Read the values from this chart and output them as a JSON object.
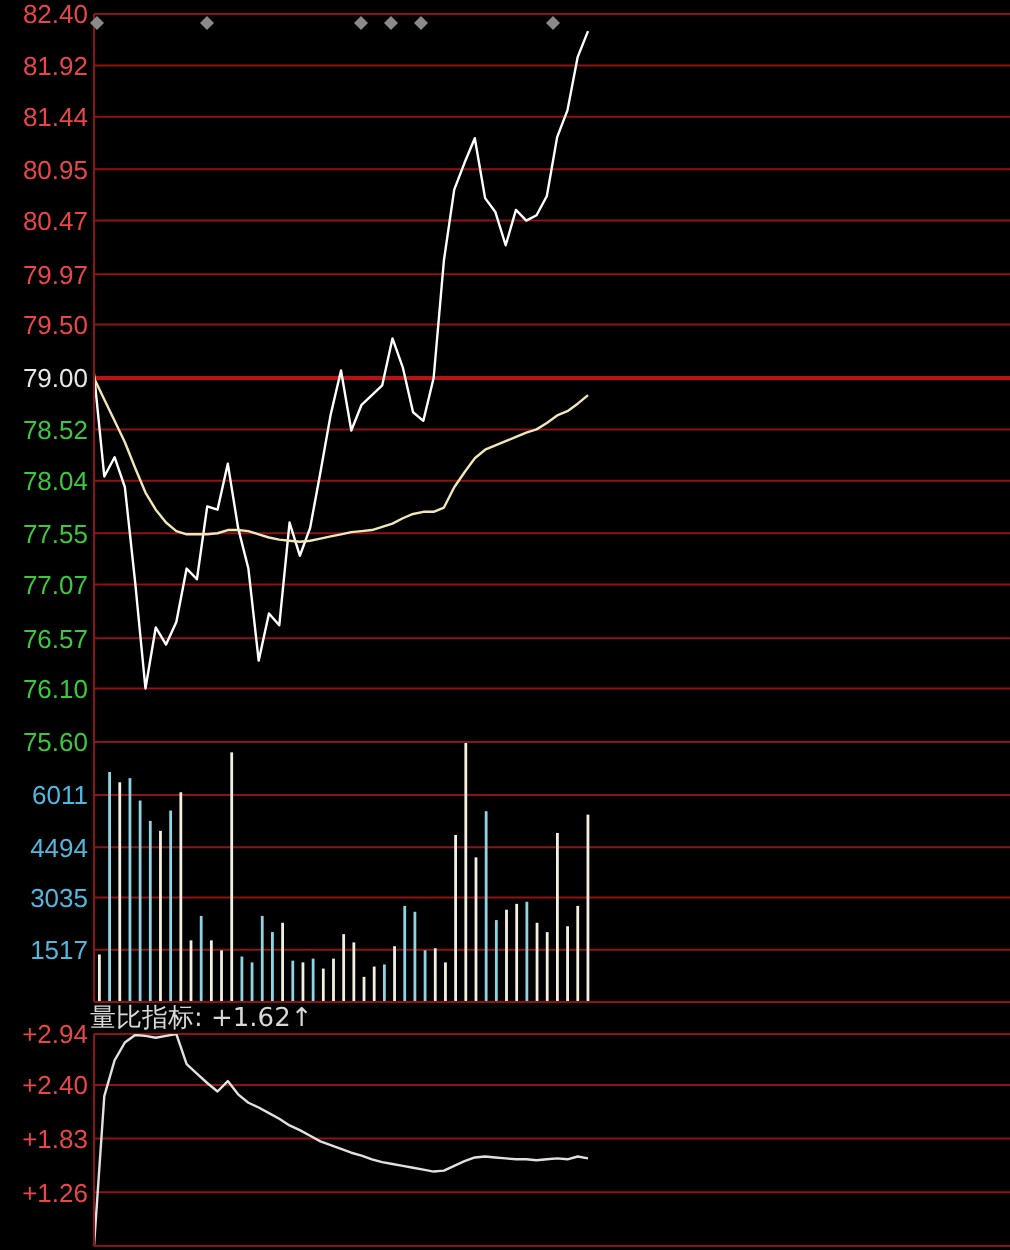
{
  "chart_data": [
    {
      "type": "line",
      "categories": [
        null,
        null,
        null,
        null,
        null,
        null,
        null,
        null,
        null,
        null,
        null,
        null,
        null,
        null,
        null,
        null,
        null,
        null,
        null,
        null,
        null,
        null,
        null,
        null,
        null,
        null,
        null,
        null,
        null,
        null,
        null,
        null,
        null,
        null,
        null,
        null,
        null,
        null,
        null,
        null,
        null,
        null,
        null,
        null,
        null,
        null,
        null,
        null,
        null,
        null,
        null,
        null,
        null,
        null,
        null,
        null,
        null,
        null,
        null,
        null,
        null,
        null,
        null,
        null,
        null,
        null,
        null,
        null,
        null,
        null,
        null,
        null,
        null,
        null,
        null,
        null,
        null,
        null,
        null,
        null,
        null,
        null,
        null,
        null,
        null,
        null,
        null,
        null,
        null,
        null
      ],
      "series": [
        {
          "color": "#ffffff",
          "values": [
            79.04,
            78.08,
            78.26,
            77.98,
            77.09,
            76.1,
            76.67,
            76.51,
            76.72,
            77.22,
            77.12,
            77.8,
            77.77,
            78.2,
            77.6,
            77.22,
            76.36,
            76.8,
            76.69,
            77.65,
            77.34,
            77.6,
            78.12,
            78.66,
            79.07,
            78.51,
            78.75,
            78.84,
            78.93,
            79.37,
            79.1,
            78.68,
            78.6,
            79.0,
            80.1,
            80.76,
            81.01,
            81.24,
            80.68,
            80.55,
            80.24,
            80.57,
            80.47,
            80.52,
            80.7,
            81.25,
            81.5,
            82.0,
            82.24,
            null,
            null,
            null,
            null,
            null,
            null,
            null,
            null,
            null,
            null,
            null,
            null,
            null,
            null,
            null,
            null,
            null,
            null,
            null,
            null,
            null,
            null,
            null,
            null,
            null,
            null,
            null,
            null,
            null,
            null,
            null,
            null,
            null,
            null,
            null,
            null,
            null,
            null,
            null,
            null,
            null
          ]
        },
        {
          "color": "#f0e6b8",
          "values": [
            79.0,
            78.8,
            78.6,
            78.4,
            78.16,
            77.93,
            77.77,
            77.65,
            77.57,
            77.54,
            77.54,
            77.54,
            77.55,
            77.58,
            77.58,
            77.57,
            77.54,
            77.51,
            77.49,
            77.48,
            77.47,
            77.48,
            77.5,
            77.52,
            77.54,
            77.56,
            77.57,
            77.58,
            77.61,
            77.64,
            77.69,
            77.73,
            77.75,
            77.75,
            77.79,
            77.98,
            78.12,
            78.25,
            78.33,
            78.37,
            78.41,
            78.45,
            78.49,
            78.52,
            78.58,
            78.65,
            78.69,
            78.76,
            78.84,
            null,
            null,
            null,
            null,
            null,
            null,
            null,
            null,
            null,
            null,
            null,
            null,
            null,
            null,
            null,
            null,
            null,
            null,
            null,
            null,
            null,
            null,
            null,
            null,
            null,
            null,
            null,
            null,
            null,
            null,
            null,
            null,
            null,
            null,
            null,
            null,
            null,
            null,
            null,
            null,
            null
          ]
        }
      ],
      "ylim": [
        75.6,
        82.4
      ],
      "yticks": [
        {
          "value": 82.4,
          "label": "82.40"
        },
        {
          "value": 81.92,
          "label": "81.92"
        },
        {
          "value": 81.44,
          "label": "81.44"
        },
        {
          "value": 80.95,
          "label": "80.95"
        },
        {
          "value": 80.47,
          "label": "80.47"
        },
        {
          "value": 79.97,
          "label": "79.97"
        },
        {
          "value": 79.5,
          "label": "79.50"
        },
        {
          "value": 79,
          "label": "79.00"
        },
        {
          "value": 78.52,
          "label": "78.52"
        },
        {
          "value": 78.04,
          "label": "78.04"
        },
        {
          "value": 77.55,
          "label": "77.55"
        },
        {
          "value": 77.07,
          "label": "77.07"
        },
        {
          "value": 76.57,
          "label": "76.57"
        },
        {
          "value": 76.1,
          "label": "76.10"
        },
        {
          "value": 75.6,
          "label": "75.60"
        }
      ],
      "grid": "y",
      "ref_lines": [
        {
          "axis": "y",
          "value": 79,
          "color": "#b81414"
        }
      ],
      "tick_labels": "y"
    },
    {
      "type": "bar",
      "categories": [
        null,
        null,
        null,
        null,
        null,
        null,
        null,
        null,
        null,
        null,
        null,
        null,
        null,
        null,
        null,
        null,
        null,
        null,
        null,
        null,
        null,
        null,
        null,
        null,
        null,
        null,
        null,
        null,
        null,
        null,
        null,
        null,
        null,
        null,
        null,
        null,
        null,
        null,
        null,
        null,
        null,
        null,
        null,
        null,
        null,
        null,
        null,
        null,
        null,
        null,
        null,
        null,
        null,
        null,
        null,
        null,
        null,
        null,
        null,
        null,
        null,
        null,
        null,
        null,
        null,
        null,
        null,
        null,
        null,
        null,
        null,
        null,
        null,
        null,
        null,
        null,
        null,
        null,
        null,
        null,
        null,
        null,
        null,
        null,
        null,
        null,
        null,
        null,
        null,
        null
      ],
      "values": [
        1380,
        6680,
        6380,
        6500,
        5850,
        5260,
        4970,
        5560,
        6090,
        1790,
        2500,
        1790,
        1500,
        7250,
        1320,
        1150,
        2500,
        2030,
        2300,
        1200,
        1150,
        1260,
        970,
        1260,
        1970,
        1730,
        730,
        1030,
        1090,
        1620,
        2790,
        2620,
        1500,
        1560,
        1150,
        4850,
        7520,
        4200,
        5540,
        2380,
        2680,
        2850,
        2910,
        2300,
        2030,
        4910,
        2200,
        2790,
        5440,
        null,
        null,
        null,
        null,
        null,
        null,
        null,
        null,
        null,
        null,
        null,
        null,
        null,
        null,
        null,
        null,
        null,
        null,
        null,
        null,
        null,
        null,
        null,
        null,
        null,
        null,
        null,
        null,
        null,
        null,
        null,
        null,
        null,
        null,
        null,
        null,
        null,
        null,
        null,
        null,
        null
      ],
      "colors": [
        "#f4f0e0",
        "#8fd4e4",
        "#f4f0e0",
        "#8fd4e4",
        "#8fd4e4",
        "#8fd4e4",
        "#f4f0e0",
        "#8fd4e4",
        "#f4f0e0",
        "#f4f0e0",
        "#8fd4e4",
        "#f4f0e0",
        "#f4f0e0",
        "#f4f0e0",
        "#8fd4e4",
        "#8fd4e4",
        "#8fd4e4",
        "#8fd4e4",
        "#f4f0e0",
        "#8fd4e4",
        "#f4f0e0",
        "#8fd4e4",
        "#f4f0e0",
        "#f4f0e0",
        "#f4f0e0",
        "#f4f0e0",
        "#f4f0e0",
        "#f4f0e0",
        "#8fd4e4",
        "#f4f0e0",
        "#8fd4e4",
        "#8fd4e4",
        "#8fd4e4",
        "#f4f0e0",
        "#f4f0e0",
        "#f4f0e0",
        "#f4f0e0",
        "#f4f0e0",
        "#8fd4e4",
        "#8fd4e4",
        "#f4f0e0",
        "#f4f0e0",
        "#8fd4e4",
        "#f4f0e0",
        "#f4f0e0",
        "#f4f0e0",
        "#f4f0e0",
        "#f4f0e0",
        "#f4f0e0",
        null,
        null,
        null,
        null,
        null,
        null,
        null,
        null,
        null,
        null,
        null,
        null,
        null,
        null,
        null,
        null,
        null,
        null,
        null,
        null,
        null,
        null,
        null,
        null,
        null,
        null,
        null,
        null,
        null,
        null,
        null,
        null,
        null,
        null,
        null,
        null,
        null,
        null,
        null,
        null,
        null
      ],
      "ylim": [
        0,
        7550
      ],
      "yticks": [
        1517,
        3035,
        4494,
        6011
      ],
      "grid": "y",
      "tick_labels": "y"
    },
    {
      "type": "line",
      "title": "量比指标: +1.62↑",
      "categories": [
        null,
        null,
        null,
        null,
        null,
        null,
        null,
        null,
        null,
        null,
        null,
        null,
        null,
        null,
        null,
        null,
        null,
        null,
        null,
        null,
        null,
        null,
        null,
        null,
        null,
        null,
        null,
        null,
        null,
        null,
        null,
        null,
        null,
        null,
        null,
        null,
        null,
        null,
        null,
        null,
        null,
        null,
        null,
        null,
        null,
        null,
        null,
        null,
        null,
        null,
        null,
        null,
        null,
        null,
        null,
        null,
        null,
        null,
        null,
        null,
        null,
        null,
        null,
        null,
        null,
        null,
        null,
        null,
        null,
        null,
        null,
        null,
        null,
        null,
        null,
        null,
        null,
        null,
        null,
        null,
        null,
        null,
        null,
        null,
        null,
        null,
        null,
        null,
        null,
        null
      ],
      "values": [
        0.69,
        2.28,
        2.66,
        2.85,
        2.93,
        2.92,
        2.9,
        2.92,
        2.94,
        2.62,
        2.52,
        2.42,
        2.33,
        2.44,
        2.3,
        2.21,
        2.16,
        2.1,
        2.04,
        1.97,
        1.92,
        1.86,
        1.8,
        1.76,
        1.72,
        1.68,
        1.65,
        1.61,
        1.58,
        1.56,
        1.54,
        1.52,
        1.5,
        1.48,
        1.49,
        1.54,
        1.59,
        1.63,
        1.64,
        1.63,
        1.62,
        1.61,
        1.61,
        1.6,
        1.61,
        1.62,
        1.61,
        1.64,
        1.62,
        null,
        null,
        null,
        null,
        null,
        null,
        null,
        null,
        null,
        null,
        null,
        null,
        null,
        null,
        null,
        null,
        null,
        null,
        null,
        null,
        null,
        null,
        null,
        null,
        null,
        null,
        null,
        null,
        null,
        null,
        null,
        null,
        null,
        null,
        null,
        null,
        null,
        null,
        null,
        null,
        null
      ],
      "color": "#e0e0e0",
      "ylim": [
        0.69,
        2.94
      ],
      "yticks": [
        {
          "value": 2.94,
          "label": "+2.94"
        },
        {
          "value": 2.4,
          "label": "+2.40"
        },
        {
          "value": 1.83,
          "label": "+1.83"
        },
        {
          "value": 1.26,
          "label": "+1.26"
        }
      ],
      "grid": "y",
      "tick_labels": "y"
    }
  ]
}
